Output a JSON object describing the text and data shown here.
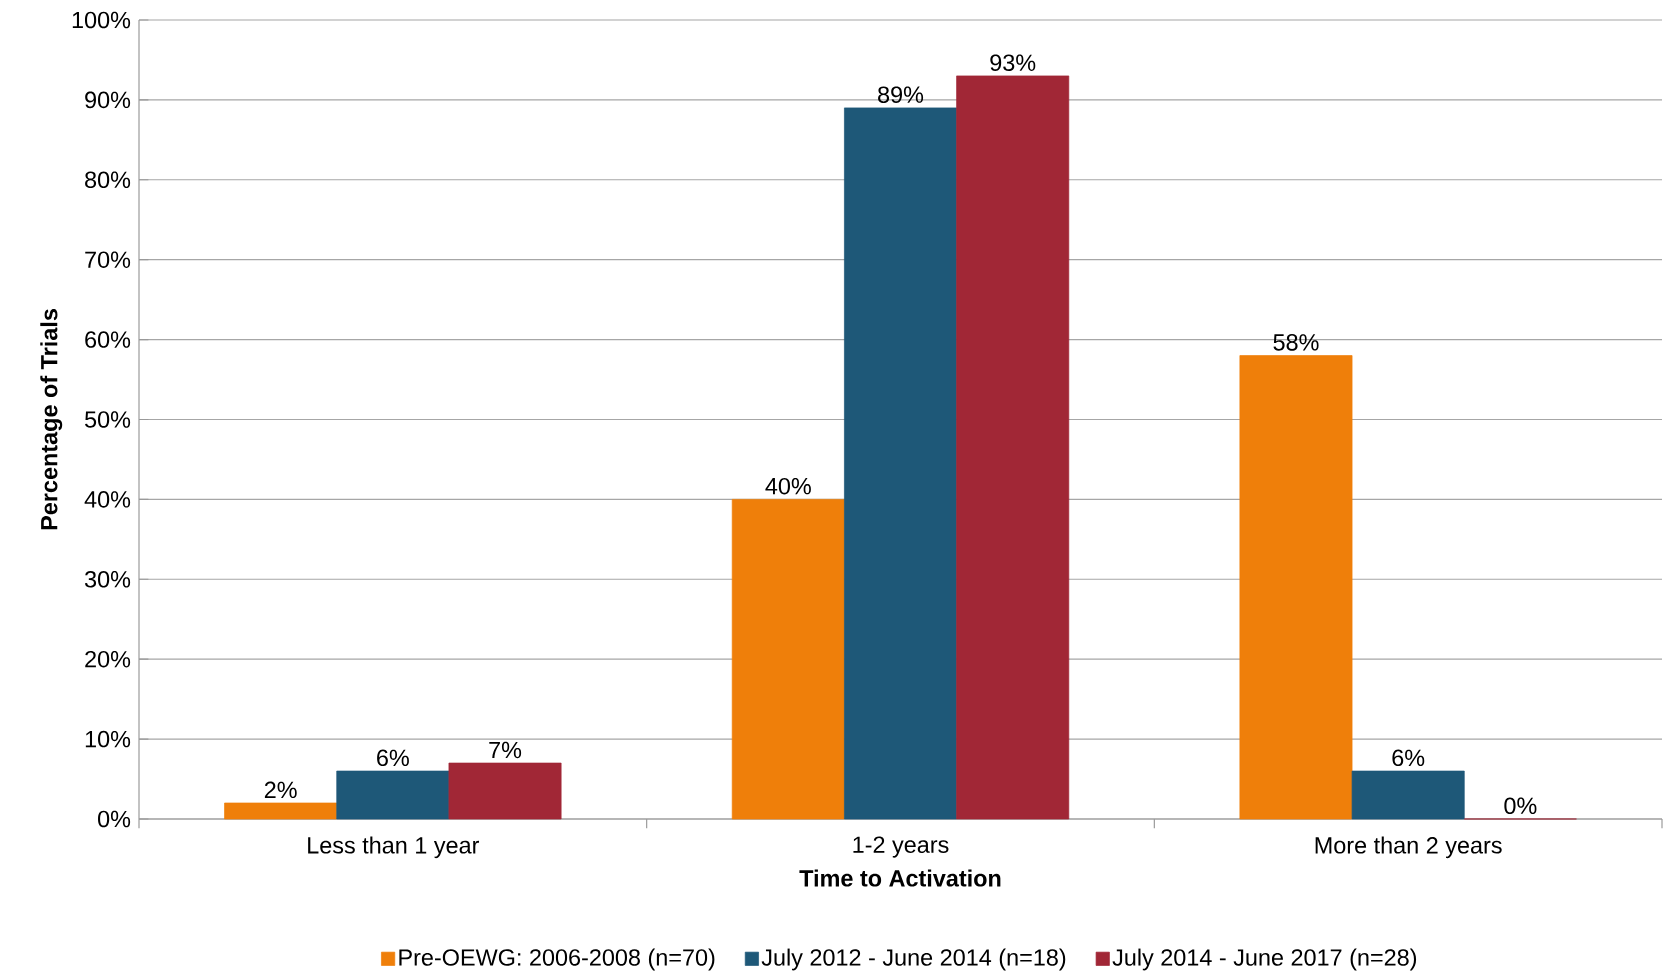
{
  "chart_data": {
    "type": "bar",
    "xlabel": "Time to Activation",
    "ylabel": "Percentage of Trials",
    "categories": [
      "Less than 1 year",
      "1-2 years",
      "More than 2 years"
    ],
    "series": [
      {
        "name": "Pre-OEWG: 2006-2008 (n=70)",
        "color": "#ef7f0a",
        "values": [
          2,
          40,
          58
        ],
        "value_labels": [
          "2%",
          "40%",
          "58%"
        ]
      },
      {
        "name": "July 2012 - June 2014 (n=18)",
        "color": "#1e5878",
        "values": [
          6,
          89,
          6
        ],
        "value_labels": [
          "6%",
          "89%",
          "6%"
        ]
      },
      {
        "name": "July 2014 - June 2017 (n=28)",
        "color": "#a12736",
        "values": [
          7,
          93,
          0
        ],
        "value_labels": [
          "7%",
          "93%",
          "0%"
        ]
      }
    ],
    "ylim": [
      0,
      100
    ],
    "yticks": [
      {
        "value": 0,
        "label": "0%"
      },
      {
        "value": 10,
        "label": "10%"
      },
      {
        "value": 20,
        "label": "20%"
      },
      {
        "value": 30,
        "label": "30%"
      },
      {
        "value": 40,
        "label": "40%"
      },
      {
        "value": 50,
        "label": "50%"
      },
      {
        "value": 60,
        "label": "60%"
      },
      {
        "value": 70,
        "label": "70%"
      },
      {
        "value": 80,
        "label": "80%"
      },
      {
        "value": 90,
        "label": "90%"
      },
      {
        "value": 100,
        "label": "100%"
      }
    ],
    "grid": "y",
    "legend": "bottom"
  }
}
